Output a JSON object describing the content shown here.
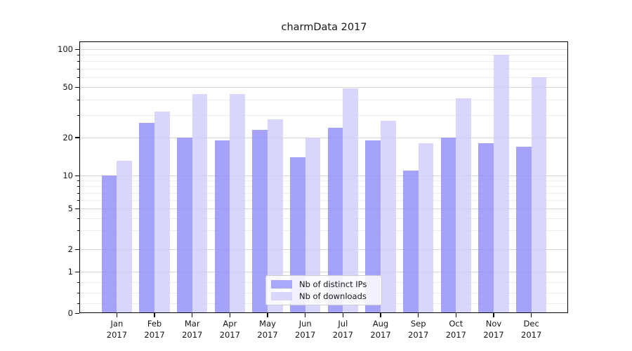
{
  "title": "charmData 2017",
  "chart_data": {
    "type": "bar",
    "title": "charmData 2017",
    "categories": [
      "Jan 2017",
      "Feb 2017",
      "Mar 2017",
      "Apr 2017",
      "May 2017",
      "Jun 2017",
      "Jul 2017",
      "Aug 2017",
      "Sep 2017",
      "Oct 2017",
      "Nov 2017",
      "Dec 2017"
    ],
    "series": [
      {
        "name": "Nb of distinct IPs",
        "color": "rgba(143,139,248,0.8)",
        "solid_color": "#aaa8fa",
        "values": [
          10,
          26,
          20,
          19,
          23,
          14,
          24,
          19,
          11,
          20,
          18,
          17
        ]
      },
      {
        "name": "Nb of downloads",
        "color": "rgba(206,204,251,0.8)",
        "solid_color": "#d9d8fb",
        "values": [
          13,
          32,
          44,
          44,
          28,
          20,
          49,
          27,
          18,
          41,
          90,
          60
        ]
      }
    ],
    "xlabel": "",
    "ylabel": "",
    "yscale": "symlog",
    "ylim": [
      0,
      115
    ],
    "y_ticks": [
      100,
      50,
      20,
      10,
      5,
      2,
      1,
      0
    ],
    "y_minor_ticks": [
      90,
      80,
      70,
      60,
      40,
      30,
      9,
      8,
      7,
      6,
      4,
      3,
      0.75,
      0.5,
      0.25
    ],
    "grid": true,
    "legend_position": "lower center"
  },
  "colors": {
    "major_grid": "#d6d6d6",
    "minor_grid": "#ececec",
    "axis": "#000000",
    "text": "#151515",
    "legend_border": "#cccccc"
  }
}
